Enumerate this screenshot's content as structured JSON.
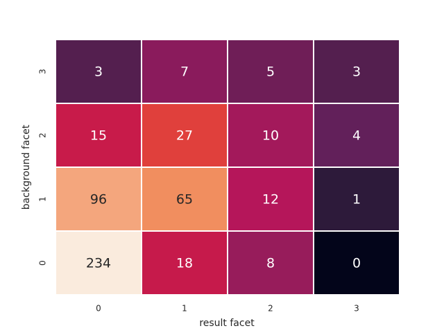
{
  "chart_data": {
    "type": "heatmap",
    "x_label": "result facet",
    "y_label": "background facet",
    "x": [
      "0",
      "1",
      "2",
      "3"
    ],
    "y": [
      "0",
      "1",
      "2",
      "3"
    ],
    "values": [
      [
        234,
        18,
        8,
        0
      ],
      [
        96,
        65,
        12,
        1
      ],
      [
        15,
        27,
        10,
        4
      ],
      [
        3,
        7,
        5,
        3
      ]
    ],
    "colors": [
      [
        "#faebdd",
        "#c61a4b",
        "#971c5b",
        "#03051a"
      ],
      [
        "#f4a67d",
        "#f18e5f",
        "#b5165a",
        "#2d1a3a"
      ],
      [
        "#c81b4a",
        "#e0403c",
        "#a3195b",
        "#62205a"
      ],
      [
        "#541f4f",
        "#8a1b5c",
        "#6f1e57",
        "#541f4f"
      ]
    ]
  }
}
